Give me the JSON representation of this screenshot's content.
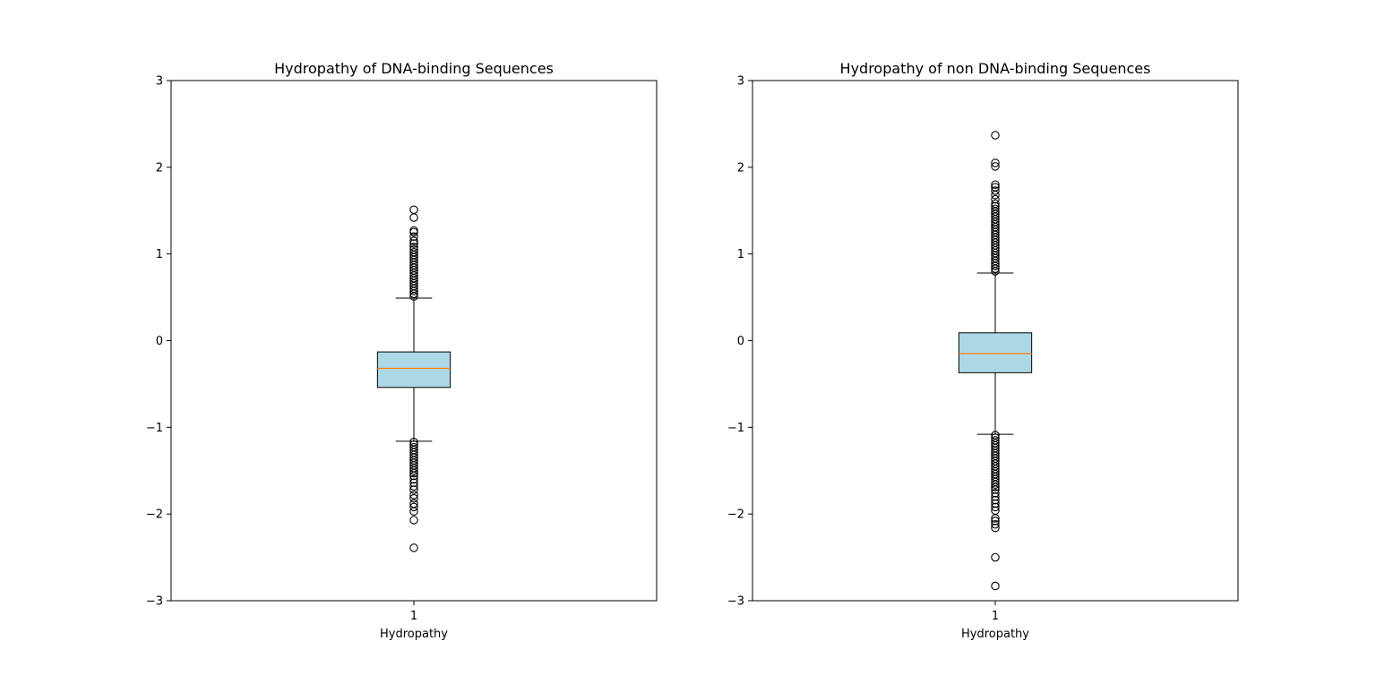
{
  "chart_data": [
    {
      "type": "box",
      "title": "Hydropathy of DNA-binding Sequences",
      "xlabel": "Hydropathy",
      "ylabel": "",
      "ylim": [
        -3,
        3
      ],
      "yticks": [
        -3,
        -2,
        -1,
        0,
        1,
        2,
        3
      ],
      "ytick_labels": [
        "−3",
        "−2",
        "−1",
        "0",
        "1",
        "2",
        "3"
      ],
      "xtick_label": "1",
      "box_color": "#add8e6",
      "median_color": "#ff7f0e",
      "stats": {
        "whisker_low": -1.16,
        "q1": -0.54,
        "median": -0.32,
        "q3": -0.13,
        "whisker_high": 0.49
      },
      "outliers": [
        1.51,
        1.42,
        1.27,
        1.25,
        1.2,
        1.15,
        1.12,
        1.08,
        1.05,
        1.02,
        0.99,
        0.96,
        0.93,
        0.9,
        0.87,
        0.84,
        0.81,
        0.78,
        0.75,
        0.72,
        0.69,
        0.66,
        0.63,
        0.6,
        0.57,
        0.54,
        0.51,
        -1.17,
        -1.2,
        -1.23,
        -1.26,
        -1.29,
        -1.32,
        -1.35,
        -1.38,
        -1.41,
        -1.44,
        -1.47,
        -1.5,
        -1.53,
        -1.56,
        -1.6,
        -1.64,
        -1.68,
        -1.72,
        -1.78,
        -1.82,
        -1.88,
        -1.92,
        -1.97,
        -2.07,
        -2.39
      ]
    },
    {
      "type": "box",
      "title": "Hydropathy of non DNA-binding Sequences",
      "xlabel": "Hydropathy",
      "ylabel": "",
      "ylim": [
        -3,
        3
      ],
      "yticks": [
        -3,
        -2,
        -1,
        0,
        1,
        2,
        3
      ],
      "ytick_labels": [
        "−3",
        "−2",
        "−1",
        "0",
        "1",
        "2",
        "3"
      ],
      "xtick_label": "1",
      "box_color": "#add8e6",
      "median_color": "#ff7f0e",
      "stats": {
        "whisker_low": -1.08,
        "q1": -0.37,
        "median": -0.15,
        "q3": 0.09,
        "whisker_high": 0.78
      },
      "outliers": [
        2.37,
        2.05,
        2.01,
        1.8,
        1.77,
        1.73,
        1.68,
        1.63,
        1.58,
        1.55,
        1.52,
        1.49,
        1.46,
        1.43,
        1.4,
        1.37,
        1.34,
        1.31,
        1.28,
        1.25,
        1.22,
        1.19,
        1.16,
        1.13,
        1.1,
        1.07,
        1.04,
        1.01,
        0.98,
        0.95,
        0.92,
        0.89,
        0.86,
        0.83,
        0.8,
        -1.09,
        -1.12,
        -1.15,
        -1.18,
        -1.21,
        -1.24,
        -1.27,
        -1.3,
        -1.33,
        -1.36,
        -1.39,
        -1.42,
        -1.45,
        -1.48,
        -1.51,
        -1.54,
        -1.57,
        -1.6,
        -1.63,
        -1.66,
        -1.69,
        -1.72,
        -1.76,
        -1.8,
        -1.84,
        -1.88,
        -1.92,
        -1.96,
        -2.05,
        -2.08,
        -2.12,
        -2.16,
        -2.5,
        -2.83
      ]
    }
  ]
}
